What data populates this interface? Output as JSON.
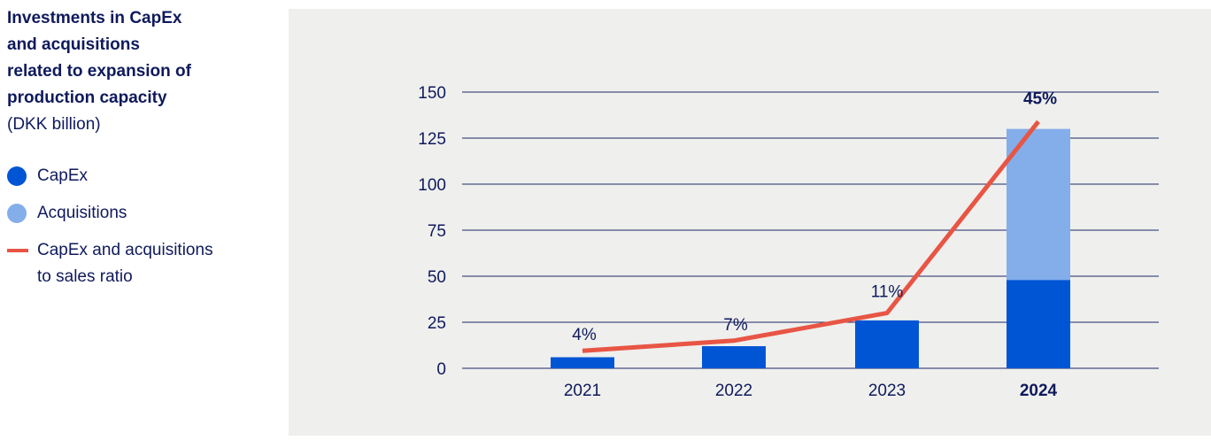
{
  "colors": {
    "text": "#0f1a5c",
    "capex": "#0055d4",
    "acquisitions": "#84aeea",
    "ratio_line": "#e85544",
    "panel_bg": "#efefed",
    "gridline": "#1b2a66"
  },
  "chart_data": {
    "type": "bar",
    "title": "Investments in CapEx\nand acquisitions\nrelated to expansion of\nproduction capacity",
    "subtitle": "(DKK billion)",
    "categories": [
      "2021",
      "2022",
      "2023",
      "2024"
    ],
    "highlight_category": "2024",
    "stacked": true,
    "ylim": [
      0,
      150
    ],
    "yticks": [
      0,
      25,
      50,
      75,
      100,
      125,
      150
    ],
    "grid": true,
    "legend_position": "left",
    "series": [
      {
        "name": "CapEx",
        "type": "bar",
        "color": "#0055d4",
        "values": [
          6,
          12,
          26,
          48
        ]
      },
      {
        "name": "Acquisitions",
        "type": "bar",
        "color": "#84aeea",
        "values": [
          0,
          0,
          0,
          82
        ]
      },
      {
        "name": "CapEx and acquisitions\nto sales ratio",
        "type": "line",
        "color": "#e85544",
        "values": [
          4,
          7,
          11,
          45
        ],
        "value_labels": [
          "4%",
          "7%",
          "11%",
          "45%"
        ],
        "plotted_y": [
          9.5,
          15,
          30,
          134
        ]
      }
    ]
  }
}
